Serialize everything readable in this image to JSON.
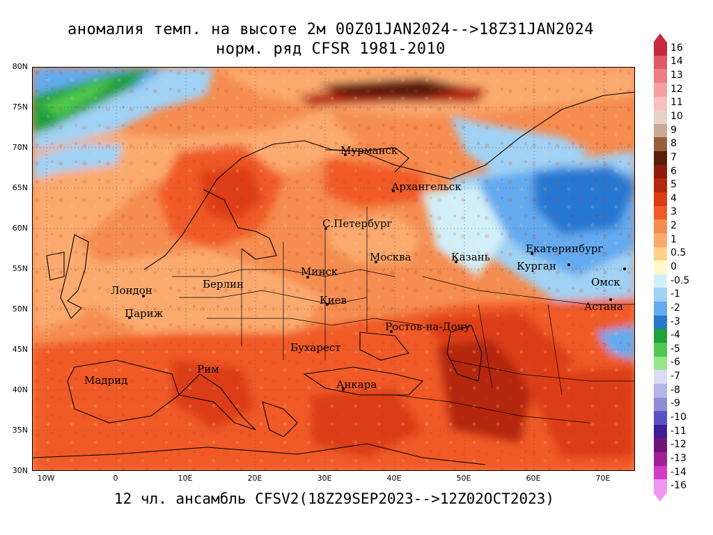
{
  "title": {
    "line1": "аномалия темп. на высоте 2м 00Z01JAN2024-->18Z31JAN2024",
    "line2": "норм. ряд CFSR 1981-2010"
  },
  "footer": "12 чл. ансамбль CFSV2(18Z29SEP2023-->12Z02OCT2023)",
  "map": {
    "lat_labels": [
      "80N",
      "75N",
      "70N",
      "65N",
      "60N",
      "55N",
      "50N",
      "45N",
      "40N",
      "35N",
      "30N"
    ],
    "lon_labels": [
      "10W",
      "0",
      "10E",
      "20E",
      "30E",
      "40E",
      "50E",
      "60E",
      "70E"
    ],
    "cities": [
      {
        "name": "Мурманск",
        "dot": true
      },
      {
        "name": "Архангельск",
        "dot": true
      },
      {
        "name": "С.Петербург",
        "dot": true
      },
      {
        "name": "Москва",
        "dot": true
      },
      {
        "name": "Казань",
        "dot": true
      },
      {
        "name": "Екатеринбург",
        "dot": true
      },
      {
        "name": "Курган",
        "dot": true
      },
      {
        "name": "Омск",
        "dot": true
      },
      {
        "name": "Астана",
        "dot": true
      },
      {
        "name": "Минск",
        "dot": true
      },
      {
        "name": "Берлин",
        "dot": false
      },
      {
        "name": "Лондон",
        "dot": true
      },
      {
        "name": "Париж",
        "dot": true
      },
      {
        "name": "Киев",
        "dot": true
      },
      {
        "name": "Ростов-на-Дону",
        "dot": true
      },
      {
        "name": "Бухарест",
        "dot": false
      },
      {
        "name": "Рим",
        "dot": false
      },
      {
        "name": "Мадрид",
        "dot": false
      },
      {
        "name": "Анкара",
        "dot": true
      }
    ]
  },
  "colorbar": {
    "levels": [
      {
        "label": "16",
        "color": "#c8283c"
      },
      {
        "label": "14",
        "color": "#e05a64"
      },
      {
        "label": "13",
        "color": "#ee7d82"
      },
      {
        "label": "12",
        "color": "#f5a0a0"
      },
      {
        "label": "11",
        "color": "#f8c0bc"
      },
      {
        "label": "10",
        "color": "#e8d2c8"
      },
      {
        "label": "9",
        "color": "#c8a896"
      },
      {
        "label": "8",
        "color": "#96603c"
      },
      {
        "label": "7",
        "color": "#5a1e0a"
      },
      {
        "label": "6",
        "color": "#8c1e0a"
      },
      {
        "label": "5",
        "color": "#b4280c"
      },
      {
        "label": "4",
        "color": "#dc3c14"
      },
      {
        "label": "3",
        "color": "#f05a28"
      },
      {
        "label": "2",
        "color": "#f58c50"
      },
      {
        "label": "1",
        "color": "#faaa6e"
      },
      {
        "label": "0.5",
        "color": "#fcd28c"
      },
      {
        "label": "0",
        "color": "#fff8c8"
      },
      {
        "label": "-0.5",
        "color": "#d2f0fa"
      },
      {
        "label": "-1",
        "color": "#a0d2f5"
      },
      {
        "label": "-2",
        "color": "#64aaf0"
      },
      {
        "label": "-3",
        "color": "#2878d2"
      },
      {
        "label": "-4",
        "color": "#1ea03c"
      },
      {
        "label": "-5",
        "color": "#50c850"
      },
      {
        "label": "-6",
        "color": "#96e68c"
      },
      {
        "label": "-7",
        "color": "#dcdcf5"
      },
      {
        "label": "-8",
        "color": "#b4b4e6"
      },
      {
        "label": "-9",
        "color": "#8c8cd7"
      },
      {
        "label": "-10",
        "color": "#5a50c3"
      },
      {
        "label": "-11",
        "color": "#3c1e96"
      },
      {
        "label": "-12",
        "color": "#6e1478"
      },
      {
        "label": "-13",
        "color": "#a01e96"
      },
      {
        "label": "-14",
        "color": "#d23cc8"
      },
      {
        "label": "-16",
        "color": "#f096f0"
      }
    ]
  }
}
